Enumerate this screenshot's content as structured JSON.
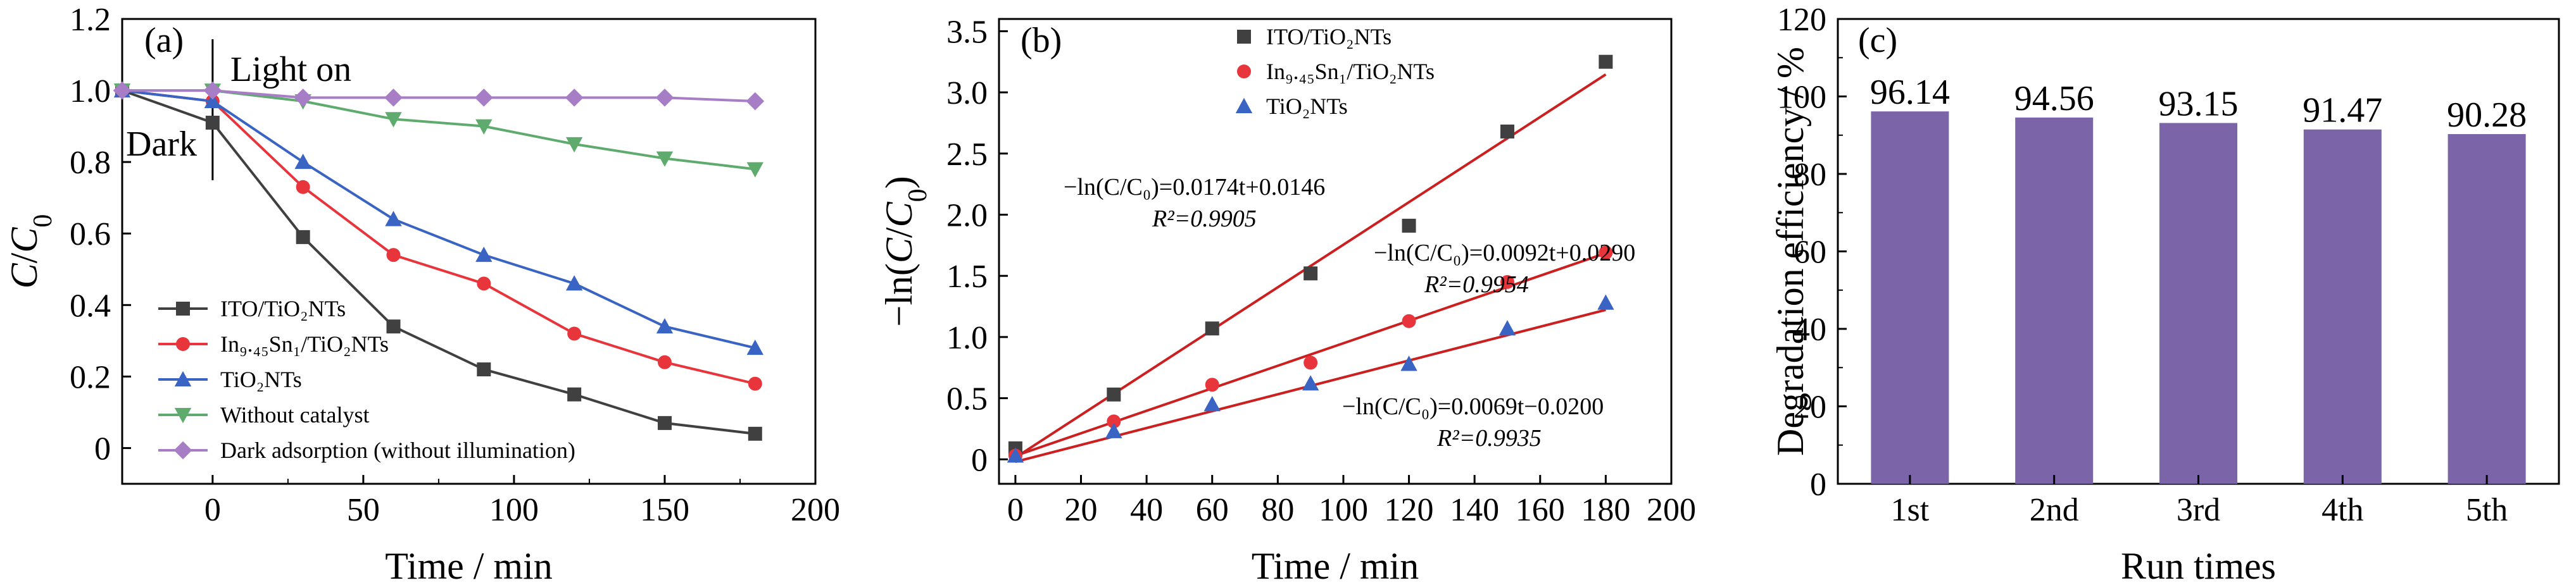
{
  "chart_data": [
    {
      "type": "line",
      "panel_label": "(a)",
      "xlabel": "Time / min",
      "ylabel": "C/C0",
      "xlim": [
        -30,
        200
      ],
      "ylim": [
        -0.1,
        1.2
      ],
      "xticks": [
        "0",
        "50",
        "100",
        "150",
        "200"
      ],
      "yticks": [
        "0",
        "0.2",
        "0.4",
        "0.6",
        "0.8",
        "1.0",
        "1.2"
      ],
      "annotations": {
        "light_on": "Light on",
        "dark": "Dark"
      },
      "legend_position": "lower-left",
      "series": [
        {
          "name": "ITO/TiO₂NTs",
          "marker": "square",
          "color": "#404040",
          "x": [
            -30,
            0,
            30,
            60,
            90,
            120,
            150,
            180
          ],
          "y": [
            1.0,
            0.91,
            0.59,
            0.34,
            0.22,
            0.15,
            0.07,
            0.04
          ]
        },
        {
          "name": "In₉.₄₅Sn₁/TiO₂NTs",
          "marker": "circle",
          "color": "#e8353b",
          "x": [
            -30,
            0,
            30,
            60,
            90,
            120,
            150,
            180
          ],
          "y": [
            1.0,
            0.97,
            0.73,
            0.54,
            0.46,
            0.32,
            0.24,
            0.18
          ]
        },
        {
          "name": "TiO₂NTs",
          "marker": "triangle-up",
          "color": "#3a64c4",
          "x": [
            -30,
            0,
            30,
            60,
            90,
            120,
            150,
            180
          ],
          "y": [
            1.0,
            0.97,
            0.8,
            0.64,
            0.54,
            0.46,
            0.34,
            0.28
          ]
        },
        {
          "name": "Without catalyst",
          "marker": "triangle-down",
          "color": "#5fab6e",
          "x": [
            -30,
            0,
            30,
            60,
            90,
            120,
            150,
            180
          ],
          "y": [
            1.0,
            1.0,
            0.97,
            0.92,
            0.9,
            0.85,
            0.81,
            0.78
          ]
        },
        {
          "name": "Dark adsorption (without illumination)",
          "marker": "diamond",
          "color": "#a77dc6",
          "x": [
            -30,
            0,
            30,
            60,
            90,
            120,
            150,
            180
          ],
          "y": [
            1.0,
            1.0,
            0.98,
            0.98,
            0.98,
            0.98,
            0.98,
            0.97
          ]
        }
      ]
    },
    {
      "type": "scatter",
      "panel_label": "(b)",
      "xlabel": "Time / min",
      "ylabel": "−ln(C/C0)",
      "xlim": [
        -5,
        200
      ],
      "ylim": [
        -0.2,
        3.6
      ],
      "xticks": [
        "0",
        "20",
        "40",
        "60",
        "80",
        "100",
        "120",
        "140",
        "160",
        "180",
        "200"
      ],
      "yticks": [
        "0",
        "0.5",
        "1.0",
        "1.5",
        "2.0",
        "2.5",
        "3.0",
        "3.5"
      ],
      "legend_position": "top-center",
      "series": [
        {
          "name": "ITO/TiO₂NTs",
          "marker": "square",
          "color": "#404040",
          "x": [
            0,
            30,
            60,
            90,
            120,
            150,
            180
          ],
          "y": [
            0.09,
            0.53,
            1.07,
            1.52,
            1.91,
            2.68,
            3.25
          ],
          "fit": {
            "slope": 0.0174,
            "intercept": 0.0146,
            "color": "#cc2020"
          },
          "equation": "−ln(C/C₀)=0.0174t+0.0146",
          "r2": "R²=0.9905",
          "label_color": "#444444"
        },
        {
          "name": "In₉.₄₅Sn₁/TiO₂NTs",
          "marker": "circle",
          "color": "#e8353b",
          "x": [
            0,
            30,
            60,
            90,
            120,
            150,
            180
          ],
          "y": [
            0.03,
            0.31,
            0.61,
            0.79,
            1.13,
            1.45,
            1.69
          ],
          "fit": {
            "slope": 0.0092,
            "intercept": 0.029,
            "color": "#cc2020"
          },
          "equation": "−ln(C/C₀)=0.0092t+0.0290",
          "r2": "R²=0.9954",
          "label_color": "#e0242c"
        },
        {
          "name": "TiO₂NTs",
          "marker": "triangle-up",
          "color": "#3a64c4",
          "x": [
            0,
            30,
            60,
            90,
            120,
            150,
            180
          ],
          "y": [
            0.03,
            0.23,
            0.45,
            0.62,
            0.78,
            1.07,
            1.28
          ],
          "fit": {
            "slope": 0.0069,
            "intercept": -0.02,
            "color": "#cc2020"
          },
          "equation": "−ln(C/C₀)=0.0069t−0.0200",
          "r2": "R²=0.9935",
          "label_color": "#2a5db0"
        }
      ]
    },
    {
      "type": "bar",
      "panel_label": "(c)",
      "xlabel": "Run times",
      "ylabel": "Degradation efficiency / %",
      "ylim": [
        0,
        120
      ],
      "yticks": [
        "0",
        "20",
        "40",
        "60",
        "80",
        "100",
        "120"
      ],
      "categories": [
        "1st",
        "2nd",
        "3rd",
        "4th",
        "5th"
      ],
      "values": [
        96.14,
        94.56,
        93.15,
        91.47,
        90.28
      ],
      "value_labels": [
        "96.14",
        "94.56",
        "93.15",
        "91.47",
        "90.28"
      ],
      "color": "#7b64a8"
    }
  ]
}
